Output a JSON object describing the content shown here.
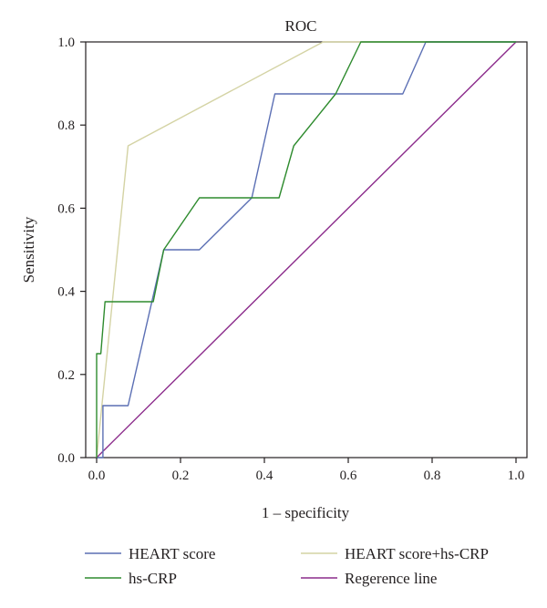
{
  "chart_data": {
    "type": "line",
    "title": "ROC",
    "xlabel": "1 – specificity",
    "ylabel": "Sensitivity",
    "xlim": [
      0,
      1
    ],
    "ylim": [
      0,
      1
    ],
    "x_ticks": [
      "0.0",
      "0.2",
      "0.4",
      "0.6",
      "0.8",
      "1.0"
    ],
    "y_ticks": [
      "0.0",
      "0.2",
      "0.4",
      "0.6",
      "0.8",
      "1.0"
    ],
    "grid": false,
    "legend_position": "bottom",
    "series": [
      {
        "name": "HEART score",
        "color": "#5b6fb4",
        "points": [
          [
            0,
            0
          ],
          [
            0.015,
            0
          ],
          [
            0.015,
            0.125
          ],
          [
            0.075,
            0.125
          ],
          [
            0.16,
            0.5
          ],
          [
            0.245,
            0.5
          ],
          [
            0.37,
            0.625
          ],
          [
            0.425,
            0.875
          ],
          [
            0.73,
            0.875
          ],
          [
            0.785,
            1.0
          ],
          [
            1.0,
            1.0
          ]
        ]
      },
      {
        "name": "HEART score+hs-CRP",
        "color": "#d4d3a4",
        "points": [
          [
            0,
            0
          ],
          [
            0.075,
            0.75
          ],
          [
            0.54,
            1.0
          ],
          [
            1.0,
            1.0
          ]
        ]
      },
      {
        "name": "hs-CRP",
        "color": "#2e8b2e",
        "points": [
          [
            0,
            0
          ],
          [
            0,
            0.25
          ],
          [
            0.01,
            0.25
          ],
          [
            0.02,
            0.375
          ],
          [
            0.135,
            0.375
          ],
          [
            0.16,
            0.5
          ],
          [
            0.245,
            0.625
          ],
          [
            0.435,
            0.625
          ],
          [
            0.47,
            0.75
          ],
          [
            0.57,
            0.875
          ],
          [
            0.63,
            1.0
          ],
          [
            1.0,
            1.0
          ]
        ]
      },
      {
        "name": "Regerence line",
        "color": "#8b2b8b",
        "points": [
          [
            0,
            0
          ],
          [
            1,
            1
          ]
        ]
      }
    ],
    "legend_order": [
      "HEART score",
      "HEART score+hs-CRP",
      "hs-CRP",
      "Regerence line"
    ]
  }
}
